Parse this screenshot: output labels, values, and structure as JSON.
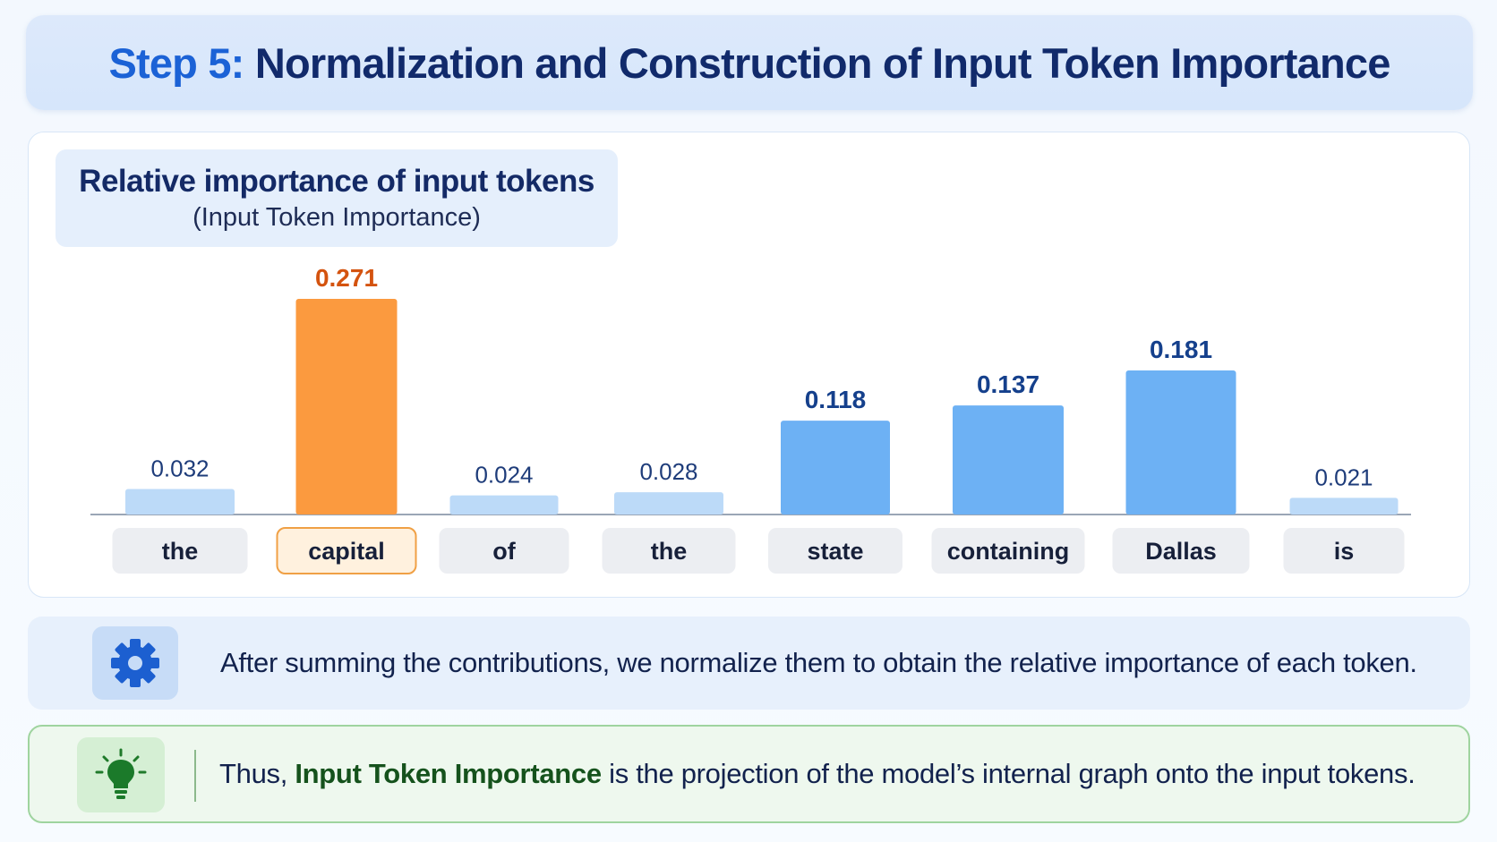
{
  "header": {
    "step": "Step 5:",
    "title": "Normalization and Construction of Input Token Importance"
  },
  "chart_data": {
    "type": "bar",
    "title": "Relative importance of input tokens",
    "subtitle": "(Input Token Importance)",
    "categories": [
      "the",
      "capital",
      "of",
      "the",
      "state",
      "containing",
      "Dallas",
      "is"
    ],
    "values": [
      0.032,
      0.271,
      0.024,
      0.028,
      0.118,
      0.137,
      0.181,
      0.021
    ],
    "value_labels": [
      "0.032",
      "0.271",
      "0.024",
      "0.028",
      "0.118",
      "0.137",
      "0.181",
      "0.021"
    ],
    "highlighted": "capital",
    "ylim": [
      0,
      0.271
    ],
    "grid": false,
    "colors": {
      "highlight": "#fb9a3f",
      "highlight_label": "#d4530f",
      "high": "#6db1f4",
      "low": "#bcdaf8",
      "label_high": "#15408c",
      "label_low": "#1e3c7a"
    }
  },
  "info": {
    "icon": "gear-icon",
    "text": "After summing the contributions, we normalize them to obtain the relative importance of each token."
  },
  "insight": {
    "icon": "lightbulb-icon",
    "prefix": "Thus, ",
    "bold": "Input Token Importance",
    "suffix": " is the projection of the model’s internal graph onto the input tokens."
  }
}
